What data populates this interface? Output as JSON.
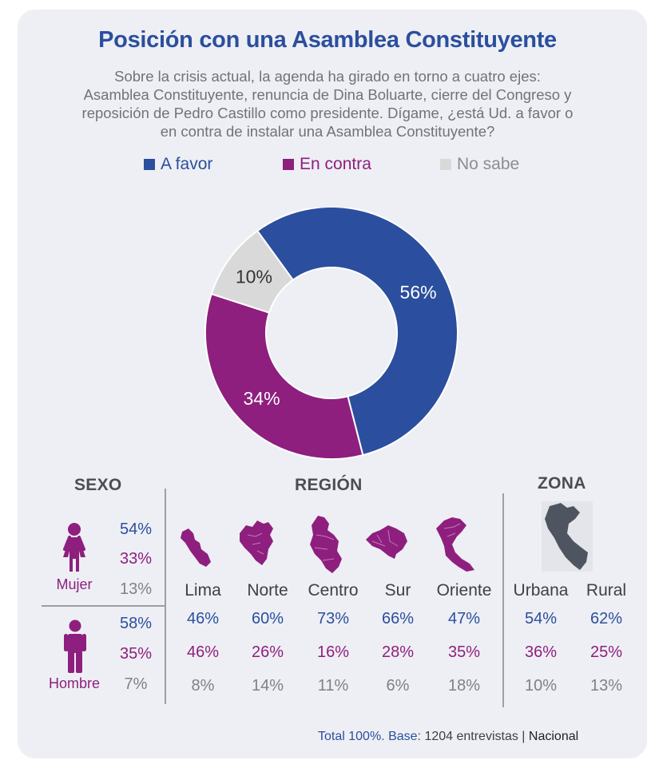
{
  "title": "Posición con una Asamblea Constituyente",
  "subtitle_lines": [
    "Sobre la crisis actual, la agenda ha girado en torno a cuatro ejes:",
    "Asamblea Constituyente, renuncia de Dina Boluarte, cierre del Congreso y",
    "reposición de Pedro Castillo como presidente.  Dígame, ¿está Ud. a favor o",
    "en contra de instalar una Asamblea Constituyente?"
  ],
  "colors": {
    "a_favor": "#2b4f9e",
    "en_contra": "#8e1f7e",
    "no_sabe": "#d9d9d9",
    "map_region": "#8e1f7e",
    "map_zona": "#4e5561"
  },
  "legend": [
    {
      "label": "A favor",
      "color": "#2b4f9e"
    },
    {
      "label": "En contra",
      "color": "#8e1f7e"
    },
    {
      "label": "No sabe",
      "color": "#d9d9d9"
    }
  ],
  "chart_data": {
    "type": "pie",
    "donut": true,
    "slices": [
      {
        "label": "A favor",
        "value": 56,
        "display": "56%"
      },
      {
        "label": "En contra",
        "value": 34,
        "display": "34%"
      },
      {
        "label": "No sabe",
        "value": 10,
        "display": "10%"
      }
    ],
    "breakdown": {
      "sexo": {
        "header": "SEXO",
        "groups": [
          {
            "label": "Mujer",
            "icon": "woman-icon",
            "values": [
              "54%",
              "33%",
              "13%"
            ]
          },
          {
            "label": "Hombre",
            "icon": "man-icon",
            "values": [
              "58%",
              "35%",
              "7%"
            ]
          }
        ]
      },
      "region": {
        "header": "REGIÓN",
        "groups": [
          {
            "label": "Lima",
            "icon": "lima-map-icon",
            "values": [
              "46%",
              "46%",
              "8%"
            ]
          },
          {
            "label": "Norte",
            "icon": "norte-map-icon",
            "values": [
              "60%",
              "26%",
              "14%"
            ]
          },
          {
            "label": "Centro",
            "icon": "centro-map-icon",
            "values": [
              "73%",
              "16%",
              "11%"
            ]
          },
          {
            "label": "Sur",
            "icon": "sur-map-icon",
            "values": [
              "66%",
              "28%",
              "6%"
            ]
          },
          {
            "label": "Oriente",
            "icon": "oriente-map-icon",
            "values": [
              "47%",
              "35%",
              "18%"
            ]
          }
        ]
      },
      "zona": {
        "header": "ZONA",
        "icon": "peru-map-icon",
        "groups": [
          {
            "label": "Urbana",
            "values": [
              "54%",
              "36%",
              "10%"
            ]
          },
          {
            "label": "Rural",
            "values": [
              "62%",
              "25%",
              "13%"
            ]
          }
        ]
      }
    }
  },
  "footer": {
    "total": "Total 100%.",
    "base_label": "Base:",
    "base_value": "1204 entrevistas",
    "separator": "|",
    "scope": "Nacional"
  }
}
